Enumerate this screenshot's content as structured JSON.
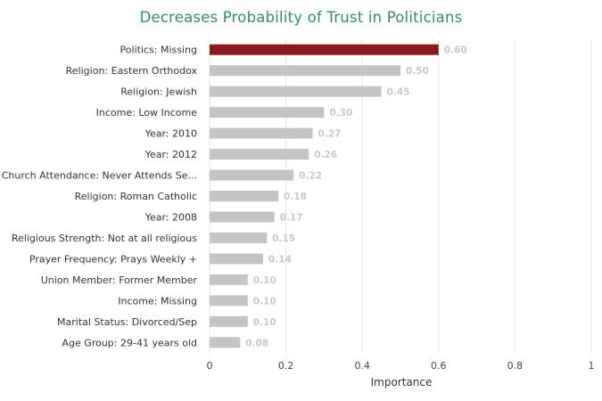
{
  "chart_data": {
    "type": "bar",
    "orientation": "horizontal",
    "title": "Decreases Probability of Trust in Politicians",
    "xlabel": "Importance",
    "ylabel": "",
    "xlim": [
      0,
      1
    ],
    "xticks": [
      "0",
      "0.2",
      "0.4",
      "0.6",
      "0.8",
      "1"
    ],
    "grid": "vertical",
    "categories": [
      "Politics: Missing",
      "Religion: Eastern Orthodox",
      "Religion: Jewish",
      "Income: Low Income",
      "Year: 2010",
      "Year: 2012",
      "Church Attendance: Never Attends Se...",
      "Religion: Roman Catholic",
      "Year: 2008",
      "Religious Strength: Not at all religious",
      "Prayer Frequency: Prays Weekly +",
      "Union Member: Former Member",
      "Income: Missing",
      "Marital Status: Divorced/Sep",
      "Age Group: 29-41 years old"
    ],
    "values": [
      0.6,
      0.5,
      0.45,
      0.3,
      0.27,
      0.26,
      0.22,
      0.18,
      0.17,
      0.15,
      0.14,
      0.1,
      0.1,
      0.1,
      0.08
    ],
    "value_labels": [
      "0.60",
      "0.50",
      "0.45",
      "0.30",
      "0.27",
      "0.26",
      "0.22",
      "0.18",
      "0.17",
      "0.15",
      "0.14",
      "0.10",
      "0.10",
      "0.10",
      "0.08"
    ],
    "highlight_index": 0,
    "colors": {
      "highlight": "#8b1a1a",
      "bar": "#c4c4c4",
      "title": "#2e8b7a",
      "grid": "#e6e6e6",
      "value_label": "#c8c8c8"
    }
  }
}
